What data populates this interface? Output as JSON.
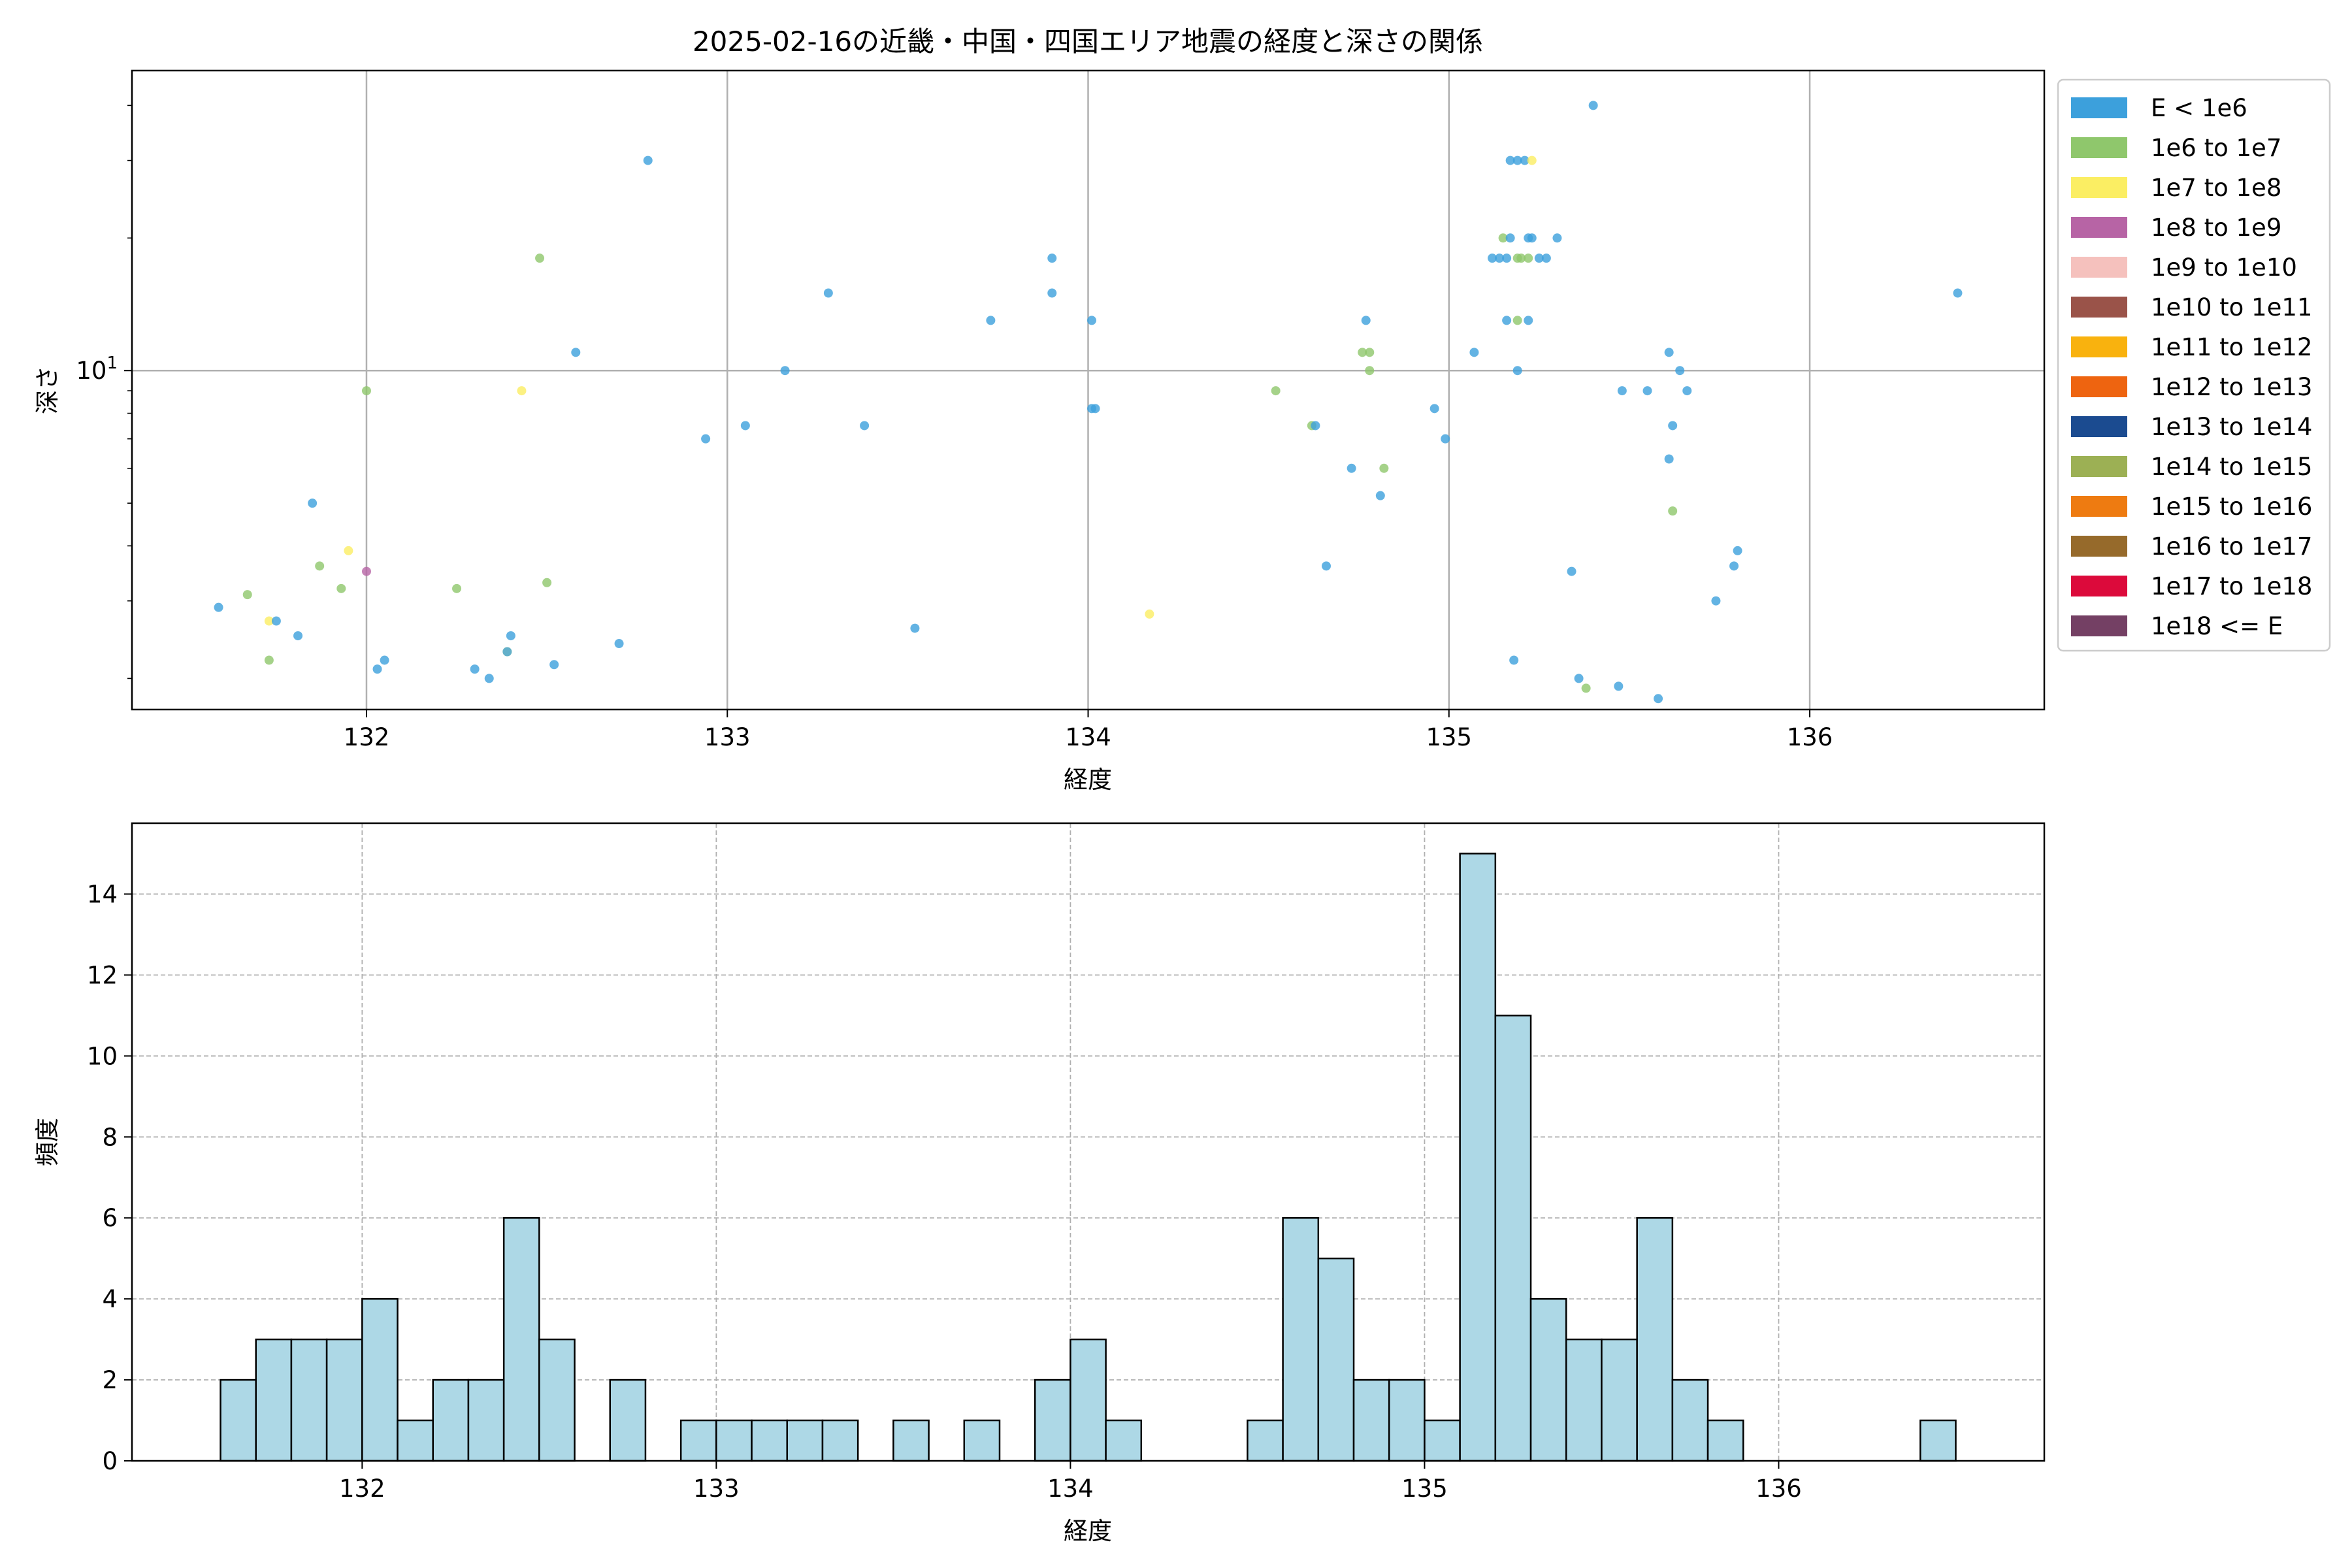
{
  "chart_data": [
    {
      "type": "scatter",
      "title": "2025-02-16の近畿・中国・四国エリア地震の経度と深さの関係",
      "xlabel": "経度",
      "ylabel": "深さ",
      "xlim": [
        131.35,
        136.65
      ],
      "ylim": [
        1.7,
        48
      ],
      "yscale": "log",
      "x_ticks": [
        132,
        133,
        134,
        135,
        136
      ],
      "y_ticks": [
        {
          "value": 10,
          "base": "10",
          "exp": "1"
        }
      ],
      "grid": true,
      "legend_position": "outside-right",
      "legend": [
        {
          "label": "E < 1e6",
          "color": "#3ca0dc"
        },
        {
          "label": "1e6 to 1e7",
          "color": "#8fc76c"
        },
        {
          "label": "1e7 to 1e8",
          "color": "#fbee63"
        },
        {
          "label": "1e8 to 1e9",
          "color": "#b764a5"
        },
        {
          "label": "1e9 to 1e10",
          "color": "#f5c1bd"
        },
        {
          "label": "1e10 to 1e11",
          "color": "#9a5349"
        },
        {
          "label": "1e11 to 1e12",
          "color": "#f9b20e"
        },
        {
          "label": "1e12 to 1e13",
          "color": "#ee6410"
        },
        {
          "label": "1e13 to 1e14",
          "color": "#1b4b90"
        },
        {
          "label": "1e14 to 1e15",
          "color": "#9cb054"
        },
        {
          "label": "1e15 to 1e16",
          "color": "#ee7b11"
        },
        {
          "label": "1e16 to 1e17",
          "color": "#966a2b"
        },
        {
          "label": "1e17 to 1e18",
          "color": "#dc0a3b"
        },
        {
          "label": "1e18 <= E",
          "color": "#744064"
        }
      ],
      "points": [
        {
          "x": 131.59,
          "y": 2.9,
          "c": 0
        },
        {
          "x": 131.67,
          "y": 3.1,
          "c": 1
        },
        {
          "x": 131.73,
          "y": 2.2,
          "c": 1
        },
        {
          "x": 131.73,
          "y": 2.7,
          "c": 2
        },
        {
          "x": 131.75,
          "y": 2.7,
          "c": 0
        },
        {
          "x": 131.81,
          "y": 2.5,
          "c": 0
        },
        {
          "x": 131.85,
          "y": 5.0,
          "c": 0
        },
        {
          "x": 131.87,
          "y": 3.6,
          "c": 1
        },
        {
          "x": 131.93,
          "y": 3.2,
          "c": 1
        },
        {
          "x": 131.95,
          "y": 3.9,
          "c": 2
        },
        {
          "x": 132.0,
          "y": 3.5,
          "c": 3
        },
        {
          "x": 132.0,
          "y": 9.0,
          "c": 1
        },
        {
          "x": 132.03,
          "y": 2.1,
          "c": 0
        },
        {
          "x": 132.05,
          "y": 2.2,
          "c": 0
        },
        {
          "x": 132.25,
          "y": 3.2,
          "c": 1
        },
        {
          "x": 132.3,
          "y": 2.1,
          "c": 0
        },
        {
          "x": 132.34,
          "y": 2.0,
          "c": 0
        },
        {
          "x": 132.39,
          "y": 2.3,
          "c": 2
        },
        {
          "x": 132.39,
          "y": 2.3,
          "c": 0
        },
        {
          "x": 132.4,
          "y": 2.5,
          "c": 0
        },
        {
          "x": 132.43,
          "y": 9.0,
          "c": 2
        },
        {
          "x": 132.48,
          "y": 18.0,
          "c": 1
        },
        {
          "x": 132.5,
          "y": 3.3,
          "c": 1
        },
        {
          "x": 132.52,
          "y": 2.15,
          "c": 0
        },
        {
          "x": 132.58,
          "y": 11.0,
          "c": 0
        },
        {
          "x": 132.7,
          "y": 2.4,
          "c": 0
        },
        {
          "x": 132.78,
          "y": 30.0,
          "c": 0
        },
        {
          "x": 132.94,
          "y": 7.0,
          "c": 0
        },
        {
          "x": 133.05,
          "y": 7.5,
          "c": 0
        },
        {
          "x": 133.16,
          "y": 10.0,
          "c": 0
        },
        {
          "x": 133.28,
          "y": 15.0,
          "c": 0
        },
        {
          "x": 133.38,
          "y": 7.5,
          "c": 0
        },
        {
          "x": 133.52,
          "y": 2.6,
          "c": 0
        },
        {
          "x": 133.73,
          "y": 13.0,
          "c": 0
        },
        {
          "x": 133.9,
          "y": 18.0,
          "c": 0
        },
        {
          "x": 133.9,
          "y": 15.0,
          "c": 0
        },
        {
          "x": 134.01,
          "y": 8.2,
          "c": 0
        },
        {
          "x": 134.01,
          "y": 13.0,
          "c": 0
        },
        {
          "x": 134.02,
          "y": 8.2,
          "c": 0
        },
        {
          "x": 134.17,
          "y": 2.8,
          "c": 2
        },
        {
          "x": 134.52,
          "y": 9.0,
          "c": 1
        },
        {
          "x": 134.62,
          "y": 7.5,
          "c": 1
        },
        {
          "x": 134.63,
          "y": 7.5,
          "c": 0
        },
        {
          "x": 134.66,
          "y": 3.6,
          "c": 0
        },
        {
          "x": 134.73,
          "y": 6.0,
          "c": 0
        },
        {
          "x": 134.76,
          "y": 11.0,
          "c": 1
        },
        {
          "x": 134.77,
          "y": 13.0,
          "c": 0
        },
        {
          "x": 134.78,
          "y": 10.0,
          "c": 1
        },
        {
          "x": 134.78,
          "y": 11.0,
          "c": 1
        },
        {
          "x": 134.81,
          "y": 5.2,
          "c": 0
        },
        {
          "x": 134.82,
          "y": 6.0,
          "c": 1
        },
        {
          "x": 134.96,
          "y": 8.2,
          "c": 0
        },
        {
          "x": 134.99,
          "y": 7.0,
          "c": 0
        },
        {
          "x": 135.07,
          "y": 11.0,
          "c": 0
        },
        {
          "x": 135.12,
          "y": 18.0,
          "c": 0
        },
        {
          "x": 135.14,
          "y": 18.0,
          "c": 0
        },
        {
          "x": 135.15,
          "y": 20.0,
          "c": 1
        },
        {
          "x": 135.16,
          "y": 18.0,
          "c": 0
        },
        {
          "x": 135.16,
          "y": 13.0,
          "c": 0
        },
        {
          "x": 135.17,
          "y": 20.0,
          "c": 0
        },
        {
          "x": 135.17,
          "y": 30.0,
          "c": 0
        },
        {
          "x": 135.18,
          "y": 2.2,
          "c": 0
        },
        {
          "x": 135.19,
          "y": 30.0,
          "c": 0
        },
        {
          "x": 135.19,
          "y": 18.0,
          "c": 1
        },
        {
          "x": 135.19,
          "y": 13.0,
          "c": 1
        },
        {
          "x": 135.19,
          "y": 10.0,
          "c": 0
        },
        {
          "x": 135.2,
          "y": 18.0,
          "c": 1
        },
        {
          "x": 135.21,
          "y": 30.0,
          "c": 0
        },
        {
          "x": 135.22,
          "y": 20.0,
          "c": 0
        },
        {
          "x": 135.22,
          "y": 18.0,
          "c": 1
        },
        {
          "x": 135.22,
          "y": 13.0,
          "c": 0
        },
        {
          "x": 135.23,
          "y": 30.0,
          "c": 2
        },
        {
          "x": 135.23,
          "y": 20.0,
          "c": 0
        },
        {
          "x": 135.25,
          "y": 18.0,
          "c": 0
        },
        {
          "x": 135.27,
          "y": 18.0,
          "c": 0
        },
        {
          "x": 135.3,
          "y": 20.0,
          "c": 0
        },
        {
          "x": 135.34,
          "y": 3.5,
          "c": 0
        },
        {
          "x": 135.36,
          "y": 2.0,
          "c": 0
        },
        {
          "x": 135.38,
          "y": 1.9,
          "c": 1
        },
        {
          "x": 135.4,
          "y": 40.0,
          "c": 0
        },
        {
          "x": 135.47,
          "y": 1.92,
          "c": 0
        },
        {
          "x": 135.48,
          "y": 9.0,
          "c": 0
        },
        {
          "x": 135.55,
          "y": 9.0,
          "c": 0
        },
        {
          "x": 135.58,
          "y": 1.8,
          "c": 0
        },
        {
          "x": 135.61,
          "y": 11.0,
          "c": 0
        },
        {
          "x": 135.61,
          "y": 6.3,
          "c": 0
        },
        {
          "x": 135.62,
          "y": 7.5,
          "c": 0
        },
        {
          "x": 135.62,
          "y": 4.8,
          "c": 1
        },
        {
          "x": 135.64,
          "y": 10.0,
          "c": 0
        },
        {
          "x": 135.66,
          "y": 9.0,
          "c": 0
        },
        {
          "x": 135.74,
          "y": 3.0,
          "c": 0
        },
        {
          "x": 135.79,
          "y": 3.6,
          "c": 0
        },
        {
          "x": 135.8,
          "y": 3.9,
          "c": 0
        },
        {
          "x": 136.41,
          "y": 15.0,
          "c": 0
        }
      ]
    },
    {
      "type": "bar",
      "xlabel": "経度",
      "ylabel": "頻度",
      "xlim": [
        131.35,
        136.75
      ],
      "ylim": [
        0,
        15.75
      ],
      "x_ticks": [
        132,
        133,
        134,
        135,
        136
      ],
      "y_ticks": [
        0,
        2,
        4,
        6,
        8,
        10,
        12,
        14
      ],
      "grid": true,
      "bar_color": "#add8e6",
      "bins": [
        {
          "x0": 131.6,
          "x1": 131.7,
          "count": 2
        },
        {
          "x0": 131.7,
          "x1": 131.8,
          "count": 3
        },
        {
          "x0": 131.8,
          "x1": 131.9,
          "count": 3
        },
        {
          "x0": 131.9,
          "x1": 132.0,
          "count": 3
        },
        {
          "x0": 132.0,
          "x1": 132.1,
          "count": 4
        },
        {
          "x0": 132.1,
          "x1": 132.2,
          "count": 1
        },
        {
          "x0": 132.2,
          "x1": 132.3,
          "count": 2
        },
        {
          "x0": 132.3,
          "x1": 132.4,
          "count": 2
        },
        {
          "x0": 132.4,
          "x1": 132.5,
          "count": 6
        },
        {
          "x0": 132.5,
          "x1": 132.6,
          "count": 3
        },
        {
          "x0": 132.7,
          "x1": 132.8,
          "count": 2
        },
        {
          "x0": 132.9,
          "x1": 133.0,
          "count": 1
        },
        {
          "x0": 133.0,
          "x1": 133.1,
          "count": 1
        },
        {
          "x0": 133.1,
          "x1": 133.2,
          "count": 1
        },
        {
          "x0": 133.2,
          "x1": 133.3,
          "count": 1
        },
        {
          "x0": 133.3,
          "x1": 133.4,
          "count": 1
        },
        {
          "x0": 133.5,
          "x1": 133.6,
          "count": 1
        },
        {
          "x0": 133.7,
          "x1": 133.8,
          "count": 1
        },
        {
          "x0": 133.9,
          "x1": 134.0,
          "count": 2
        },
        {
          "x0": 134.0,
          "x1": 134.1,
          "count": 3
        },
        {
          "x0": 134.1,
          "x1": 134.2,
          "count": 1
        },
        {
          "x0": 134.5,
          "x1": 134.6,
          "count": 1
        },
        {
          "x0": 134.6,
          "x1": 134.7,
          "count": 6
        },
        {
          "x0": 134.7,
          "x1": 134.8,
          "count": 5
        },
        {
          "x0": 134.8,
          "x1": 134.9,
          "count": 2
        },
        {
          "x0": 134.9,
          "x1": 135.0,
          "count": 2
        },
        {
          "x0": 135.0,
          "x1": 135.1,
          "count": 1
        },
        {
          "x0": 135.1,
          "x1": 135.2,
          "count": 15
        },
        {
          "x0": 135.2,
          "x1": 135.3,
          "count": 11
        },
        {
          "x0": 135.3,
          "x1": 135.4,
          "count": 4
        },
        {
          "x0": 135.4,
          "x1": 135.5,
          "count": 3
        },
        {
          "x0": 135.5,
          "x1": 135.6,
          "count": 3
        },
        {
          "x0": 135.6,
          "x1": 135.7,
          "count": 6
        },
        {
          "x0": 135.7,
          "x1": 135.8,
          "count": 2
        },
        {
          "x0": 135.8,
          "x1": 135.9,
          "count": 1
        },
        {
          "x0": 136.4,
          "x1": 136.5,
          "count": 1
        }
      ]
    }
  ]
}
